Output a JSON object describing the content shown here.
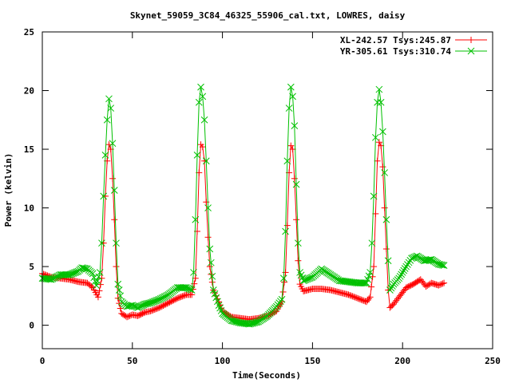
{
  "chart_data": {
    "type": "line",
    "title": "Skynet_59059_3C84_46325_55906_cal.txt, LOWRES, daisy",
    "xlabel": "Time(Seconds)",
    "ylabel": "Power (kelvin)",
    "xlim": [
      0,
      250
    ],
    "ylim": [
      -2,
      25
    ],
    "xticks": [
      0,
      50,
      100,
      150,
      200,
      250
    ],
    "yticks": [
      0,
      5,
      10,
      15,
      20,
      25
    ],
    "grid": false,
    "legend_position": "top-right",
    "series": [
      {
        "name": "XL-242.57 Tsys:245.87",
        "color": "#ff0000",
        "marker": "plus",
        "points": [
          [
            0,
            4.4
          ],
          [
            5,
            4.1
          ],
          [
            10,
            4.0
          ],
          [
            15,
            3.9
          ],
          [
            20,
            3.7
          ],
          [
            25,
            3.6
          ],
          [
            28,
            3.2
          ],
          [
            31,
            2.4
          ],
          [
            33,
            4.0
          ],
          [
            34,
            7.0
          ],
          [
            35,
            11.0
          ],
          [
            36,
            14.0
          ],
          [
            37,
            15.4
          ],
          [
            38,
            15.0
          ],
          [
            39,
            12.5
          ],
          [
            40,
            9.0
          ],
          [
            41,
            5.0
          ],
          [
            42,
            2.3
          ],
          [
            44,
            1.0
          ],
          [
            47,
            0.7
          ],
          [
            50,
            0.9
          ],
          [
            53,
            0.8
          ],
          [
            57,
            1.1
          ],
          [
            60,
            1.2
          ],
          [
            65,
            1.5
          ],
          [
            70,
            1.9
          ],
          [
            75,
            2.3
          ],
          [
            80,
            2.6
          ],
          [
            83,
            2.6
          ],
          [
            85,
            4.0
          ],
          [
            86,
            8.0
          ],
          [
            87,
            13.0
          ],
          [
            88,
            15.4
          ],
          [
            89,
            15.2
          ],
          [
            90,
            14.0
          ],
          [
            91,
            10.5
          ],
          [
            92,
            7.5
          ],
          [
            93,
            5.0
          ],
          [
            95,
            3.0
          ],
          [
            98,
            2.0
          ],
          [
            100,
            1.2
          ],
          [
            105,
            0.7
          ],
          [
            110,
            0.6
          ],
          [
            115,
            0.5
          ],
          [
            120,
            0.6
          ],
          [
            125,
            0.8
          ],
          [
            130,
            1.2
          ],
          [
            133,
            2.0
          ],
          [
            135,
            4.5
          ],
          [
            136,
            8.5
          ],
          [
            137,
            13.0
          ],
          [
            138,
            15.3
          ],
          [
            139,
            15.0
          ],
          [
            140,
            12.5
          ],
          [
            141,
            9.0
          ],
          [
            142,
            5.5
          ],
          [
            143,
            3.5
          ],
          [
            145,
            2.9
          ],
          [
            150,
            3.1
          ],
          [
            155,
            3.1
          ],
          [
            160,
            3.0
          ],
          [
            165,
            2.8
          ],
          [
            170,
            2.6
          ],
          [
            175,
            2.3
          ],
          [
            180,
            2.0
          ],
          [
            182,
            2.4
          ],
          [
            184,
            5.0
          ],
          [
            185,
            9.5
          ],
          [
            186,
            14.0
          ],
          [
            187,
            15.6
          ],
          [
            188,
            15.3
          ],
          [
            189,
            13.5
          ],
          [
            190,
            10.0
          ],
          [
            191,
            6.5
          ],
          [
            192,
            3.0
          ],
          [
            193,
            1.5
          ],
          [
            195,
            1.8
          ],
          [
            198,
            2.4
          ],
          [
            202,
            3.2
          ],
          [
            206,
            3.5
          ],
          [
            210,
            3.9
          ],
          [
            213,
            3.3
          ],
          [
            216,
            3.6
          ],
          [
            220,
            3.4
          ],
          [
            223,
            3.6
          ]
        ]
      },
      {
        "name": "YR-305.61 Tsys:310.74",
        "color": "#00c000",
        "marker": "cross",
        "points": [
          [
            0,
            4.0
          ],
          [
            5,
            3.9
          ],
          [
            10,
            4.3
          ],
          [
            15,
            4.3
          ],
          [
            20,
            4.6
          ],
          [
            22,
            4.9
          ],
          [
            25,
            4.8
          ],
          [
            28,
            4.4
          ],
          [
            30,
            3.4
          ],
          [
            32,
            4.5
          ],
          [
            33,
            7.0
          ],
          [
            34,
            11.0
          ],
          [
            35,
            14.5
          ],
          [
            36,
            17.5
          ],
          [
            37,
            19.3
          ],
          [
            38,
            18.5
          ],
          [
            39,
            15.5
          ],
          [
            40,
            11.5
          ],
          [
            41,
            7.0
          ],
          [
            42,
            3.5
          ],
          [
            44,
            2.0
          ],
          [
            47,
            1.6
          ],
          [
            50,
            1.7
          ],
          [
            53,
            1.5
          ],
          [
            57,
            1.8
          ],
          [
            60,
            1.9
          ],
          [
            65,
            2.2
          ],
          [
            70,
            2.6
          ],
          [
            75,
            3.2
          ],
          [
            80,
            3.2
          ],
          [
            83,
            3.0
          ],
          [
            84,
            4.5
          ],
          [
            85,
            9.0
          ],
          [
            86,
            14.5
          ],
          [
            87,
            19.0
          ],
          [
            88,
            20.3
          ],
          [
            89,
            19.5
          ],
          [
            90,
            17.5
          ],
          [
            91,
            14.0
          ],
          [
            92,
            10.0
          ],
          [
            93,
            6.5
          ],
          [
            95,
            3.0
          ],
          [
            98,
            1.7
          ],
          [
            100,
            1.0
          ],
          [
            105,
            0.4
          ],
          [
            110,
            0.2
          ],
          [
            115,
            0.1
          ],
          [
            120,
            0.3
          ],
          [
            125,
            0.8
          ],
          [
            130,
            1.6
          ],
          [
            133,
            2.2
          ],
          [
            134,
            4.0
          ],
          [
            135,
            8.0
          ],
          [
            136,
            14.0
          ],
          [
            137,
            18.5
          ],
          [
            138,
            20.3
          ],
          [
            139,
            19.5
          ],
          [
            140,
            17.0
          ],
          [
            141,
            12.0
          ],
          [
            142,
            7.0
          ],
          [
            143,
            4.5
          ],
          [
            145,
            3.8
          ],
          [
            150,
            4.1
          ],
          [
            155,
            4.8
          ],
          [
            160,
            4.3
          ],
          [
            165,
            3.8
          ],
          [
            170,
            3.7
          ],
          [
            175,
            3.6
          ],
          [
            180,
            3.6
          ],
          [
            182,
            4.5
          ],
          [
            183,
            7.0
          ],
          [
            184,
            11.0
          ],
          [
            185,
            16.0
          ],
          [
            186,
            19.0
          ],
          [
            187,
            20.1
          ],
          [
            188,
            19.0
          ],
          [
            189,
            16.5
          ],
          [
            190,
            13.0
          ],
          [
            191,
            9.0
          ],
          [
            192,
            5.5
          ],
          [
            193,
            3.0
          ],
          [
            195,
            3.5
          ],
          [
            198,
            4.0
          ],
          [
            202,
            5.0
          ],
          [
            205,
            5.7
          ],
          [
            208,
            5.9
          ],
          [
            212,
            5.5
          ],
          [
            216,
            5.6
          ],
          [
            220,
            5.2
          ],
          [
            223,
            5.1
          ]
        ]
      }
    ]
  }
}
